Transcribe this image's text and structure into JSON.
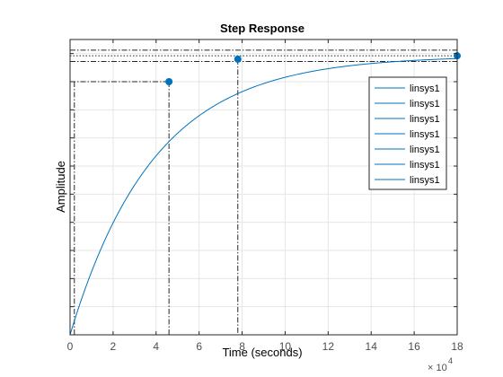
{
  "chart_data": {
    "type": "line",
    "title": "Step Response",
    "xlabel": "Time (seconds)",
    "ylabel": "Amplitude",
    "x_exponent_base": "× 10",
    "x_exponent_power": "4",
    "xlim": [
      0,
      18
    ],
    "ylim": [
      0,
      1.05
    ],
    "x_ticks": [
      0,
      2,
      4,
      6,
      8,
      10,
      12,
      14,
      16,
      18
    ],
    "x_tick_labels": [
      "0",
      "2",
      "4",
      "6",
      "8",
      "10",
      "12",
      "14",
      "16",
      "18"
    ],
    "grid": true,
    "legend_position": "right",
    "legend": [
      "linsys1",
      "linsys1",
      "linsys1",
      "linsys1",
      "linsys1",
      "linsys1",
      "linsys1"
    ],
    "line_color": "#0072bd",
    "series": [
      {
        "model": "first-order",
        "final_value": 0.992,
        "initial_value": 0.0,
        "time_constant": 3.9
      }
    ],
    "characteristics": {
      "rise_start": {
        "x": 0.2,
        "y": 0.1
      },
      "rise_end": {
        "x": 4.6,
        "y": 0.9
      },
      "settling": {
        "x": 7.8,
        "y": 0.98
      },
      "final": {
        "x": 18,
        "y": 0.992
      },
      "settling_band_upper": 1.012,
      "settling_band_lower": 0.972,
      "final_value_line": 0.992
    }
  }
}
